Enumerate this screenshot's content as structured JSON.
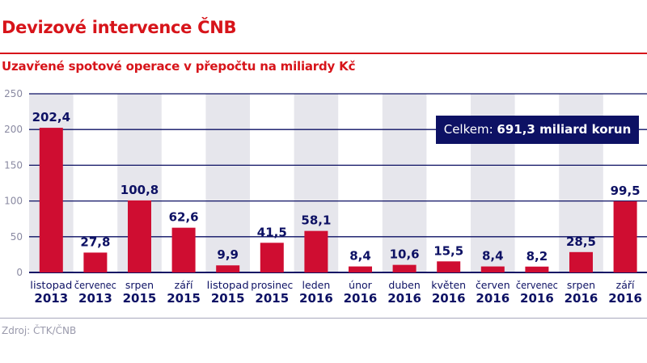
{
  "title": "Devizové intervence ČNB",
  "subtitle": "Uzavřené spotové operace v přepočtu na miliardy Kč",
  "callout": {
    "label": "Celkem:",
    "value": "691,3 miliard korun"
  },
  "source": "Zdroj: ČTK/ČNB",
  "colors": {
    "accent": "#d7141a",
    "bar": "#cf0d31",
    "navy": "#0d1164",
    "band": "#e6e6ec",
    "axis_text": "#8a8aa2"
  },
  "chart_data": {
    "type": "bar",
    "title": "Devizové intervence ČNB",
    "subtitle": "Uzavřené spotové operace v přepočtu na miliardy Kč",
    "categories": [
      {
        "month": "listopad",
        "year": "2013"
      },
      {
        "month": "červenec",
        "year": "2013"
      },
      {
        "month": "srpen",
        "year": "2015"
      },
      {
        "month": "září",
        "year": "2015"
      },
      {
        "month": "listopad",
        "year": "2015"
      },
      {
        "month": "prosinec",
        "year": "2015"
      },
      {
        "month": "leden",
        "year": "2016"
      },
      {
        "month": "únor",
        "year": "2016"
      },
      {
        "month": "duben",
        "year": "2016"
      },
      {
        "month": "květen",
        "year": "2016"
      },
      {
        "month": "červen",
        "year": "2016"
      },
      {
        "month": "červenec",
        "year": "2016"
      },
      {
        "month": "srpen",
        "year": "2016"
      },
      {
        "month": "září",
        "year": "2016"
      }
    ],
    "values": [
      202.4,
      27.8,
      100.8,
      62.6,
      9.9,
      41.5,
      58.1,
      8.4,
      10.6,
      15.5,
      8.4,
      8.2,
      28.5,
      99.5
    ],
    "value_labels": [
      "202,4",
      "27,8",
      "100,8",
      "62,6",
      "9,9",
      "41,5",
      "58,1",
      "8,4",
      "10,6",
      "15,5",
      "8,4",
      "8,2",
      "28,5",
      "99,5"
    ],
    "yticks": [
      0,
      50,
      100,
      150,
      200,
      250
    ],
    "ylim": [
      0,
      250
    ],
    "xlabel": "",
    "ylabel": "",
    "grid": true,
    "legend": "none"
  }
}
